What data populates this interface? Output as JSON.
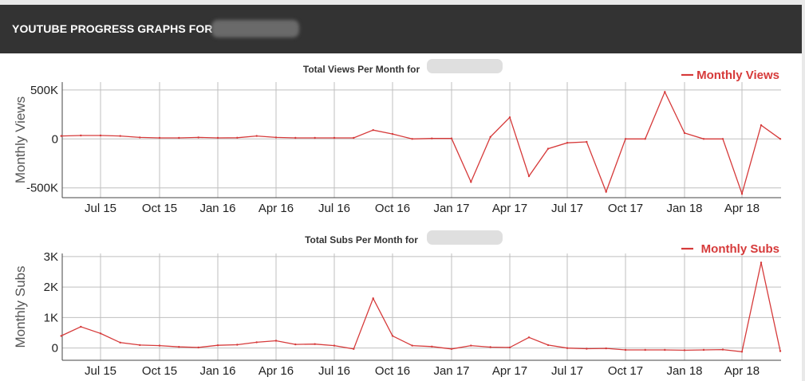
{
  "header": {
    "title": "YOUTUBE PROGRESS GRAPHS FOR ."
  },
  "colors": {
    "header_bg": "#333333",
    "line": "#d63a3a",
    "grid": "#bfbfbf"
  },
  "chart_data": [
    {
      "type": "line",
      "title": "Total Views Per Month for",
      "ylabel": "Monthly Views",
      "ylim": [
        -600000,
        580000
      ],
      "yticks": [
        {
          "value": 500000,
          "label": "500K"
        },
        {
          "value": 0,
          "label": "0"
        },
        {
          "value": -500000,
          "label": "-500K"
        }
      ],
      "xticks": [
        "Jul 15",
        "Oct 15",
        "Jan 16",
        "Apr 16",
        "Jul 16",
        "Oct 16",
        "Jan 17",
        "Apr 17",
        "Jul 17",
        "Oct 17",
        "Jan 18",
        "Apr 18"
      ],
      "x": [
        "2015-05",
        "2015-06",
        "2015-07",
        "2015-08",
        "2015-09",
        "2015-10",
        "2015-11",
        "2015-12",
        "2016-01",
        "2016-02",
        "2016-03",
        "2016-04",
        "2016-05",
        "2016-06",
        "2016-07",
        "2016-08",
        "2016-09",
        "2016-10",
        "2016-11",
        "2016-12",
        "2017-01",
        "2017-02",
        "2017-03",
        "2017-04",
        "2017-05",
        "2017-06",
        "2017-07",
        "2017-08",
        "2017-09",
        "2017-10",
        "2017-11",
        "2017-12",
        "2018-01",
        "2018-02",
        "2018-03",
        "2018-04",
        "2018-05",
        "2018-06"
      ],
      "legend_position": "top-right",
      "series": [
        {
          "name": "Monthly Views",
          "values": [
            30000,
            35000,
            35000,
            30000,
            15000,
            10000,
            10000,
            15000,
            10000,
            12000,
            30000,
            15000,
            10000,
            10000,
            10000,
            10000,
            90000,
            50000,
            0,
            5000,
            5000,
            -440000,
            20000,
            220000,
            -380000,
            -100000,
            -40000,
            -30000,
            -540000,
            0,
            0,
            480000,
            60000,
            0,
            0,
            -560000,
            140000,
            0
          ]
        }
      ]
    },
    {
      "type": "line",
      "title": "Total Subs Per Month for",
      "ylabel": "Monthly Subs",
      "ylim": [
        -400,
        3100
      ],
      "yticks": [
        {
          "value": 3000,
          "label": "3K"
        },
        {
          "value": 2000,
          "label": "2K"
        },
        {
          "value": 1000,
          "label": "1K"
        },
        {
          "value": 0,
          "label": "0"
        }
      ],
      "xticks": [
        "Jul 15",
        "Oct 15",
        "Jan 16",
        "Apr 16",
        "Jul 16",
        "Oct 16",
        "Jan 17",
        "Apr 17",
        "Jul 17",
        "Oct 17",
        "Jan 18",
        "Apr 18"
      ],
      "x": [
        "2015-05",
        "2015-06",
        "2015-07",
        "2015-08",
        "2015-09",
        "2015-10",
        "2015-11",
        "2015-12",
        "2016-01",
        "2016-02",
        "2016-03",
        "2016-04",
        "2016-05",
        "2016-06",
        "2016-07",
        "2016-08",
        "2016-09",
        "2016-10",
        "2016-11",
        "2016-12",
        "2017-01",
        "2017-02",
        "2017-03",
        "2017-04",
        "2017-05",
        "2017-06",
        "2017-07",
        "2017-08",
        "2017-09",
        "2017-10",
        "2017-11",
        "2017-12",
        "2018-01",
        "2018-02",
        "2018-03",
        "2018-04",
        "2018-05",
        "2018-06"
      ],
      "legend_position": "top-right",
      "series": [
        {
          "name": "Monthly Subs",
          "values": [
            400,
            700,
            480,
            180,
            100,
            80,
            40,
            20,
            90,
            110,
            190,
            240,
            120,
            130,
            80,
            -30,
            1630,
            400,
            80,
            50,
            -30,
            80,
            30,
            20,
            350,
            100,
            0,
            -20,
            -10,
            -60,
            -60,
            -60,
            -70,
            -60,
            -50,
            -120,
            2800,
            -100
          ]
        }
      ]
    }
  ]
}
